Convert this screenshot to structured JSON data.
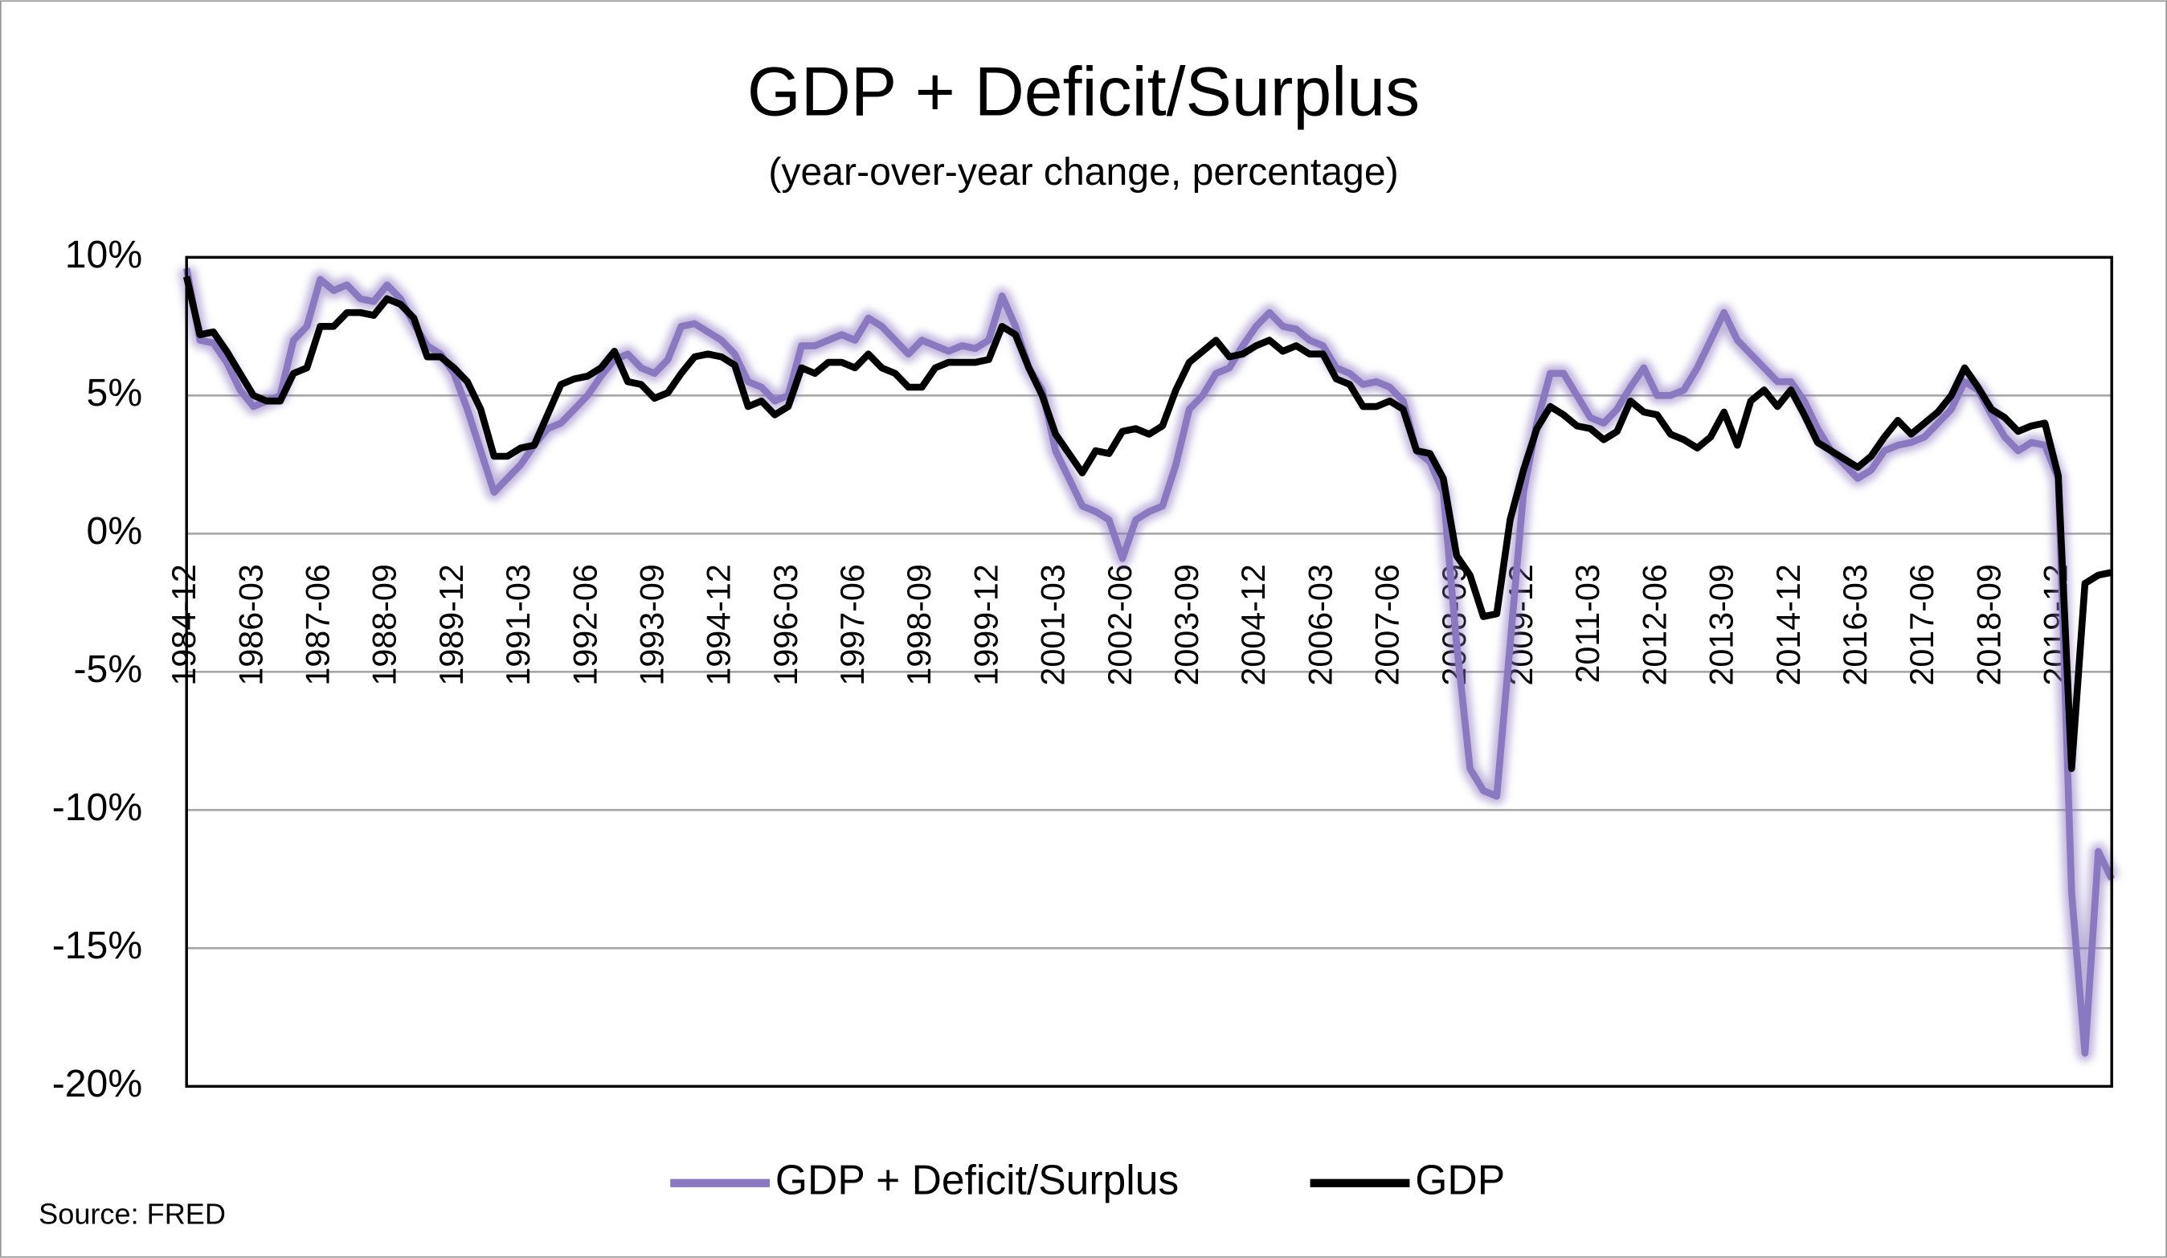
{
  "chart_data": {
    "type": "line",
    "title": "GDP + Deficit/Surplus",
    "subtitle": "(year-over-year change, percentage)",
    "source": "Source: FRED",
    "categories": [
      "1984-12",
      null,
      null,
      null,
      null,
      "1986-03",
      null,
      null,
      null,
      null,
      "1987-06",
      null,
      null,
      null,
      null,
      "1988-09",
      null,
      null,
      null,
      null,
      "1989-12",
      null,
      null,
      null,
      null,
      "1991-03",
      null,
      null,
      null,
      null,
      "1992-06",
      null,
      null,
      null,
      null,
      "1993-09",
      null,
      null,
      null,
      null,
      "1994-12",
      null,
      null,
      null,
      null,
      "1996-03",
      null,
      null,
      null,
      null,
      "1997-06",
      null,
      null,
      null,
      null,
      "1998-09",
      null,
      null,
      null,
      null,
      "1999-12",
      null,
      null,
      null,
      null,
      "2001-03",
      null,
      null,
      null,
      null,
      "2002-06",
      null,
      null,
      null,
      null,
      "2003-09",
      null,
      null,
      null,
      null,
      "2004-12",
      null,
      null,
      null,
      null,
      "2006-03",
      null,
      null,
      null,
      null,
      "2007-06",
      null,
      null,
      null,
      null,
      "2008-09",
      null,
      null,
      null,
      null,
      "2009-12",
      null,
      null,
      null,
      null,
      "2011-03",
      null,
      null,
      null,
      null,
      "2012-06",
      null,
      null,
      null,
      null,
      "2013-09",
      null,
      null,
      null,
      null,
      "2014-12",
      null,
      null,
      null,
      null,
      "2016-03",
      null,
      null,
      null,
      null,
      "2017-06",
      null,
      null,
      null,
      null,
      "2018-09",
      null,
      null,
      null,
      null,
      "2019-12",
      null,
      null,
      null,
      null
    ],
    "series": [
      {
        "name": "GDP + Deficit/Surplus",
        "color": "#8a78c0",
        "glow": true,
        "values": [
          9.6,
          7.0,
          6.9,
          6.2,
          5.2,
          4.6,
          4.8,
          5.0,
          7.0,
          7.5,
          9.2,
          8.8,
          9.0,
          8.5,
          8.4,
          9.0,
          8.5,
          7.6,
          6.8,
          6.5,
          5.8,
          4.5,
          3.0,
          1.5,
          2.0,
          2.5,
          3.2,
          3.8,
          4.0,
          4.5,
          5.0,
          5.7,
          6.3,
          6.5,
          6.0,
          5.8,
          6.3,
          7.5,
          7.6,
          7.3,
          7.0,
          6.5,
          5.5,
          5.3,
          4.8,
          5.0,
          6.8,
          6.8,
          7.0,
          7.2,
          7.0,
          7.8,
          7.5,
          7.0,
          6.5,
          7.0,
          6.8,
          6.6,
          6.8,
          6.7,
          7.0,
          8.6,
          7.5,
          6.0,
          5.2,
          3.0,
          2.0,
          1.0,
          0.8,
          0.5,
          -0.9,
          0.5,
          0.8,
          1.0,
          2.5,
          4.5,
          5.0,
          5.8,
          6.0,
          6.8,
          7.5,
          8.0,
          7.5,
          7.4,
          7.0,
          6.8,
          6.0,
          5.8,
          5.4,
          5.5,
          5.3,
          4.8,
          3.0,
          2.6,
          1.5,
          -4.0,
          -8.5,
          -9.3,
          -9.5,
          -4.0,
          1.5,
          4.0,
          5.8,
          5.8,
          5.0,
          4.2,
          4.0,
          4.5,
          5.3,
          6.0,
          5.0,
          5.0,
          5.2,
          6.0,
          7.0,
          8.0,
          7.0,
          6.5,
          6.0,
          5.5,
          5.5,
          4.8,
          3.8,
          3.0,
          2.5,
          2.0,
          2.3,
          3.0,
          3.2,
          3.3,
          3.5,
          4.0,
          4.5,
          5.5,
          5.2,
          4.3,
          3.5,
          3.0,
          3.3,
          3.2,
          2.0,
          -13,
          -18.8,
          -11.5,
          -12.5
        ]
      },
      {
        "name": "GDP",
        "color": "#000000",
        "glow": false,
        "values": [
          9.3,
          7.2,
          7.3,
          6.6,
          5.8,
          5.0,
          4.8,
          4.8,
          5.8,
          6.0,
          7.5,
          7.5,
          8.0,
          8.0,
          7.9,
          8.5,
          8.3,
          7.8,
          6.4,
          6.4,
          6.0,
          5.5,
          4.5,
          2.8,
          2.8,
          3.1,
          3.2,
          4.3,
          5.4,
          5.6,
          5.7,
          6.0,
          6.6,
          5.5,
          5.4,
          4.9,
          5.1,
          5.8,
          6.4,
          6.5,
          6.4,
          6.1,
          4.6,
          4.8,
          4.3,
          4.6,
          6.0,
          5.8,
          6.2,
          6.2,
          6.0,
          6.5,
          6.0,
          5.8,
          5.3,
          5.3,
          6.0,
          6.2,
          6.2,
          6.2,
          6.3,
          7.5,
          7.2,
          6.0,
          5.0,
          3.6,
          2.9,
          2.2,
          3.0,
          2.9,
          3.7,
          3.8,
          3.6,
          3.9,
          5.2,
          6.2,
          6.6,
          7.0,
          6.4,
          6.5,
          6.8,
          7.0,
          6.6,
          6.8,
          6.5,
          6.5,
          5.6,
          5.4,
          4.6,
          4.6,
          4.8,
          4.5,
          3.0,
          2.9,
          2.0,
          -0.8,
          -1.5,
          -3.0,
          -2.9,
          0.5,
          2.3,
          3.8,
          4.6,
          4.3,
          3.9,
          3.8,
          3.4,
          3.7,
          4.8,
          4.4,
          4.3,
          3.6,
          3.4,
          3.1,
          3.5,
          4.4,
          3.2,
          4.8,
          5.2,
          4.6,
          5.2,
          4.3,
          3.3,
          3.0,
          2.7,
          2.4,
          2.8,
          3.5,
          4.1,
          3.6,
          4.0,
          4.4,
          5.0,
          6.0,
          5.3,
          4.5,
          4.2,
          3.7,
          3.9,
          4.0,
          2.1,
          -8.5,
          -1.8,
          -1.5,
          -1.4
        ]
      }
    ],
    "ylim": [
      -20,
      10
    ],
    "yticks": [
      {
        "value": -20,
        "label": "-20%"
      },
      {
        "value": -15,
        "label": "-15%"
      },
      {
        "value": -10,
        "label": "-10%"
      },
      {
        "value": -5,
        "label": "-5%"
      },
      {
        "value": 0,
        "label": "0%"
      },
      {
        "value": 5,
        "label": "5%"
      },
      {
        "value": 10,
        "label": "10%"
      }
    ],
    "grid": true,
    "legend": "bottom"
  }
}
